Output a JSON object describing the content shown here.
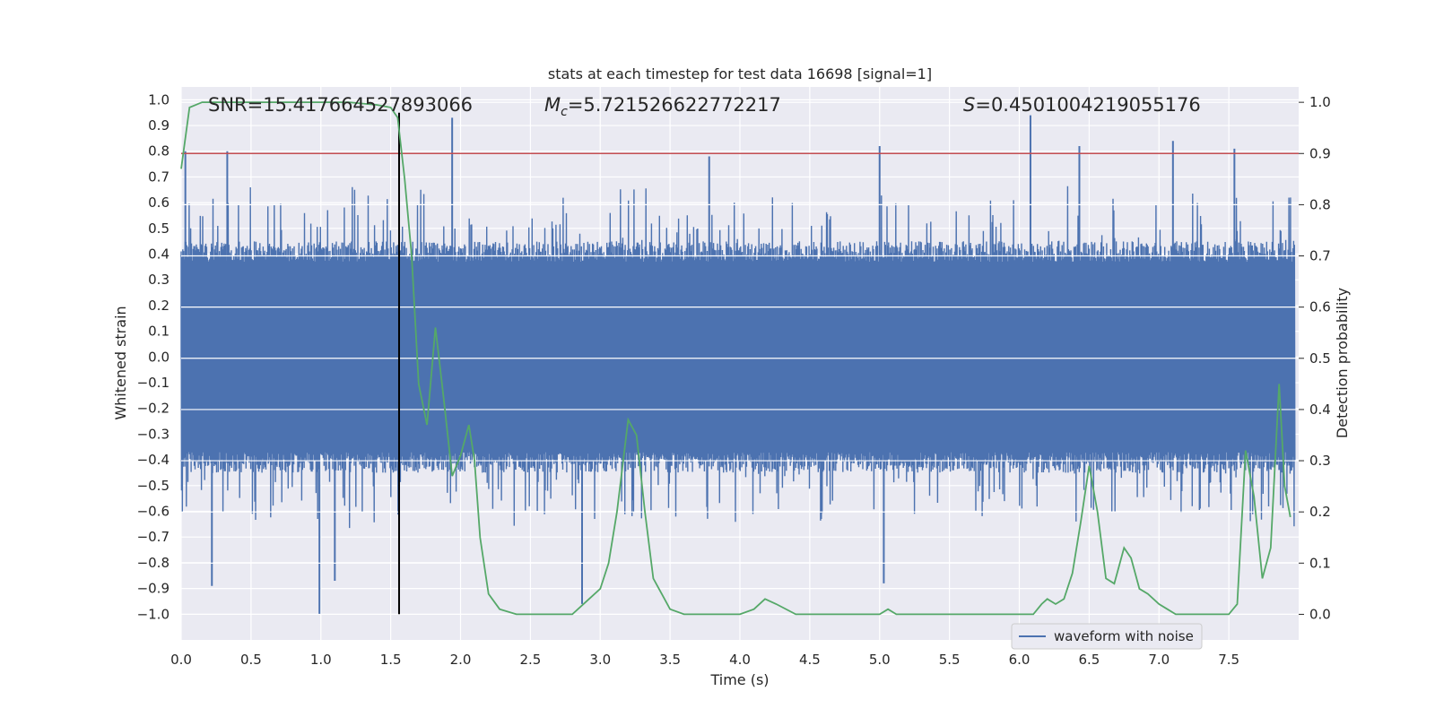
{
  "chart_data": {
    "type": "line",
    "title": "stats at each timestep for test data 16698 [signal=1]",
    "xlabel": "Time (s)",
    "ylabel_left": "Whitened strain",
    "ylabel_right": "Detection probability",
    "xlim": [
      0.0,
      8.0
    ],
    "ylim_left": [
      -1.1,
      1.05
    ],
    "ylim_right": [
      -0.05,
      1.03
    ],
    "x_ticks": [
      "0.0",
      "0.5",
      "1.0",
      "1.5",
      "2.0",
      "2.5",
      "3.0",
      "3.5",
      "4.0",
      "4.5",
      "5.0",
      "5.5",
      "6.0",
      "6.5",
      "7.0",
      "7.5"
    ],
    "y_ticks_left": [
      "1.0",
      "0.9",
      "0.8",
      "0.7",
      "0.6",
      "0.5",
      "0.4",
      "0.3",
      "0.2",
      "0.1",
      "0.0",
      "−0.1",
      "−0.2",
      "−0.3",
      "−0.4",
      "−0.5",
      "−0.6",
      "−0.7",
      "−0.8",
      "−0.9",
      "−1.0"
    ],
    "y_ticks_right": [
      "1.0",
      "0.9",
      "0.8",
      "0.7",
      "0.6",
      "0.5",
      "0.4",
      "0.3",
      "0.2",
      "0.1",
      "0.0"
    ],
    "grid": true,
    "legend_position": "bottom-right",
    "annotations": {
      "snr": "SNR=15.417664527893066",
      "mc_symbol": "M",
      "mc_sub": "c",
      "mc_value": "=5.721526622772217",
      "s_symbol": "S",
      "s_value": "=0.4501004219055176"
    },
    "threshold_line": {
      "axis": "right",
      "value": 0.9,
      "color": "#c44e52"
    },
    "vertical_marker": {
      "x": 1.56,
      "color": "#000000"
    },
    "series": [
      {
        "name": "waveform with noise",
        "axis": "left",
        "color": "#4c72b0",
        "style": "noise",
        "core_amplitude": 0.37,
        "typical_max": 0.45,
        "typical_min": -0.45,
        "notable_peaks": [
          {
            "x": 0.03,
            "y": 0.8
          },
          {
            "x": 0.33,
            "y": 0.8
          },
          {
            "x": 0.22,
            "y": -0.89
          },
          {
            "x": 0.99,
            "y": -1.0
          },
          {
            "x": 1.1,
            "y": -0.87
          },
          {
            "x": 1.94,
            "y": 0.93
          },
          {
            "x": 2.87,
            "y": -0.96
          },
          {
            "x": 3.78,
            "y": 0.78
          },
          {
            "x": 5.0,
            "y": 0.82
          },
          {
            "x": 5.03,
            "y": -0.88
          },
          {
            "x": 6.08,
            "y": 0.94
          },
          {
            "x": 6.43,
            "y": 0.82
          },
          {
            "x": 7.1,
            "y": 0.84
          },
          {
            "x": 7.54,
            "y": 0.81
          }
        ]
      },
      {
        "name": "",
        "axis": "right",
        "color": "#55a868",
        "style": "line",
        "x": [
          0.0,
          0.06,
          0.15,
          0.3,
          0.5,
          0.8,
          1.0,
          1.2,
          1.4,
          1.5,
          1.55,
          1.6,
          1.65,
          1.7,
          1.76,
          1.82,
          1.88,
          1.94,
          2.0,
          2.06,
          2.1,
          2.14,
          2.2,
          2.28,
          2.4,
          2.6,
          2.8,
          2.92,
          3.0,
          3.06,
          3.12,
          3.2,
          3.26,
          3.32,
          3.38,
          3.44,
          3.5,
          3.6,
          3.8,
          4.0,
          4.1,
          4.18,
          4.26,
          4.4,
          4.6,
          4.8,
          5.0,
          5.06,
          5.12,
          5.2,
          5.3,
          5.4,
          5.5,
          5.6,
          5.8,
          6.0,
          6.1,
          6.16,
          6.2,
          6.26,
          6.32,
          6.38,
          6.44,
          6.5,
          6.56,
          6.62,
          6.68,
          6.75,
          6.8,
          6.86,
          6.92,
          7.0,
          7.06,
          7.12,
          7.2,
          7.3,
          7.4,
          7.5,
          7.56,
          7.62,
          7.68,
          7.74,
          7.8,
          7.86,
          7.9,
          7.94
        ],
        "values": [
          0.87,
          0.99,
          1.0,
          1.0,
          1.0,
          1.0,
          1.0,
          1.0,
          0.995,
          0.99,
          0.97,
          0.85,
          0.7,
          0.45,
          0.37,
          0.56,
          0.42,
          0.27,
          0.31,
          0.37,
          0.3,
          0.15,
          0.04,
          0.01,
          0.0,
          0.0,
          0.0,
          0.03,
          0.05,
          0.1,
          0.2,
          0.38,
          0.35,
          0.2,
          0.07,
          0.04,
          0.01,
          0.0,
          0.0,
          0.0,
          0.01,
          0.03,
          0.02,
          0.0,
          0.0,
          0.0,
          0.0,
          0.01,
          0.0,
          0.0,
          0.0,
          0.0,
          0.0,
          0.0,
          0.0,
          0.0,
          0.0,
          0.02,
          0.03,
          0.02,
          0.03,
          0.08,
          0.18,
          0.29,
          0.2,
          0.07,
          0.06,
          0.13,
          0.11,
          0.05,
          0.04,
          0.02,
          0.01,
          0.0,
          0.0,
          0.0,
          0.0,
          0.0,
          0.02,
          0.32,
          0.23,
          0.07,
          0.13,
          0.45,
          0.25,
          0.19
        ]
      }
    ]
  }
}
